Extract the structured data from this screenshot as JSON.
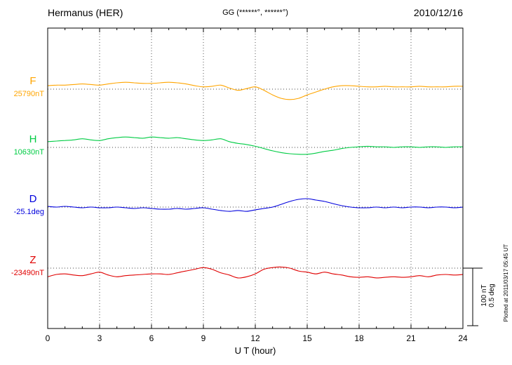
{
  "header": {
    "station": "Hermanus (HER)",
    "coords": "GG (******°, ******°)",
    "date": "2010/12/16"
  },
  "xaxis": {
    "label": "U T (hour)",
    "min": 0,
    "max": 24,
    "ticks": [
      0,
      3,
      6,
      9,
      12,
      15,
      18,
      21,
      24
    ],
    "minor_step": 1
  },
  "scale_bar": {
    "nt_label": "100 nT",
    "deg_label": "0.5 deg",
    "nt": 100,
    "deg": 0.5
  },
  "footer_note": "Plotted at 2011/03/17 05:45 UT",
  "chart_data": {
    "type": "line",
    "title": "Hermanus (HER) magnetogram 2010/12/16",
    "x_step_hours": 0.5,
    "x_unit": "UT hour",
    "grid": "dotted vertical at every 3 h, dotted horizontal baseline per trace",
    "legend_position": "left of each trace",
    "series": [
      {
        "letter": "F",
        "unit": "nT",
        "value_label": "25790nT",
        "baseline": 25790,
        "color": "#ffa500",
        "offsets": [
          6,
          7,
          7,
          8,
          9,
          8,
          7,
          9,
          11,
          12,
          11,
          10,
          10,
          11,
          12,
          11,
          9,
          6,
          4,
          5,
          7,
          2,
          -2,
          1,
          4,
          -2,
          -10,
          -16,
          -18,
          -16,
          -10,
          -5,
          0,
          4,
          6,
          6,
          5,
          4,
          4,
          5,
          4,
          4,
          4,
          5,
          4,
          4,
          4,
          5,
          5
        ]
      },
      {
        "letter": "H",
        "unit": "nT",
        "value_label": "10630nT",
        "baseline": 10630,
        "color": "#00cc44",
        "offsets": [
          10,
          11,
          12,
          13,
          15,
          13,
          12,
          15,
          17,
          18,
          17,
          16,
          18,
          17,
          16,
          17,
          15,
          13,
          12,
          13,
          15,
          10,
          7,
          5,
          2,
          -2,
          -6,
          -9,
          -11,
          -12,
          -12,
          -10,
          -7,
          -5,
          -2,
          0,
          1,
          2,
          1,
          1,
          0,
          1,
          1,
          0,
          1,
          1,
          0,
          1,
          1
        ]
      },
      {
        "letter": "D",
        "unit": "deg",
        "value_label": "-25.1deg",
        "baseline": -25.1,
        "color": "#0000dd",
        "offsets": [
          0.006,
          0,
          0.006,
          0,
          -0.006,
          0,
          -0.006,
          -0.006,
          0,
          -0.006,
          -0.012,
          -0.006,
          -0.012,
          -0.018,
          -0.018,
          -0.012,
          -0.018,
          -0.012,
          -0.006,
          -0.018,
          -0.03,
          -0.037,
          -0.03,
          -0.037,
          -0.024,
          -0.012,
          0,
          0.024,
          0.049,
          0.067,
          0.073,
          0.061,
          0.049,
          0.03,
          0.012,
          0,
          -0.006,
          -0.006,
          0,
          -0.006,
          0,
          -0.006,
          0,
          0,
          -0.006,
          0,
          0,
          -0.006,
          0
        ]
      },
      {
        "letter": "Z",
        "unit": "nT",
        "value_label": "-23490nT",
        "baseline": -23490,
        "color": "#e00000",
        "offsets": [
          -15,
          -11,
          -10,
          -12,
          -13,
          -10,
          -7,
          -12,
          -15,
          -13,
          -12,
          -11,
          -10,
          -10,
          -11,
          -8,
          -5,
          -2,
          1,
          -2,
          -8,
          -12,
          -17,
          -15,
          -10,
          -2,
          1,
          2,
          0,
          -5,
          -7,
          -10,
          -7,
          -10,
          -12,
          -15,
          -16,
          -15,
          -17,
          -16,
          -15,
          -16,
          -15,
          -13,
          -15,
          -12,
          -11,
          -12,
          -11
        ]
      }
    ]
  }
}
